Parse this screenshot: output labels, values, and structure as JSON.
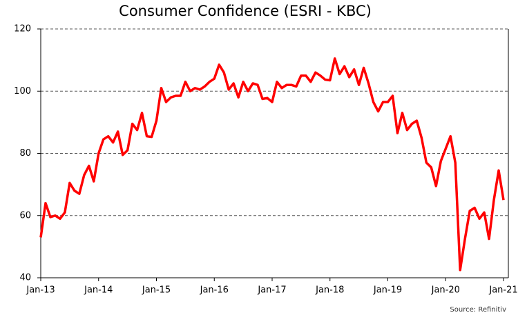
{
  "chart_data": {
    "type": "line",
    "title": "Consumer Confidence (ESRI - KBC)",
    "source": "Source: Refinitiv",
    "categories": [
      "Jan-13",
      null,
      null,
      null,
      null,
      null,
      null,
      null,
      null,
      null,
      null,
      null,
      "Jan-14",
      null,
      null,
      null,
      null,
      null,
      null,
      null,
      null,
      null,
      null,
      null,
      "Jan-15",
      null,
      null,
      null,
      null,
      null,
      null,
      null,
      null,
      null,
      null,
      null,
      "Jan-16",
      null,
      null,
      null,
      null,
      null,
      null,
      null,
      null,
      null,
      null,
      null,
      "Jan-17",
      null,
      null,
      null,
      null,
      null,
      null,
      null,
      null,
      null,
      null,
      null,
      "Jan-18",
      null,
      null,
      null,
      null,
      null,
      null,
      null,
      null,
      null,
      null,
      null,
      "Jan-19",
      null,
      null,
      null,
      null,
      null,
      null,
      null,
      null,
      null,
      null,
      null,
      "Jan-20",
      null,
      null,
      null,
      null,
      null,
      null,
      null,
      null,
      null,
      null,
      null,
      "Jan-21"
    ],
    "series": [
      {
        "name": "Consumer Confidence",
        "color": "#ff0000",
        "values": [
          53,
          64,
          59.5,
          60,
          59,
          61,
          70.5,
          68,
          67,
          73,
          76,
          71,
          80,
          84.5,
          85.5,
          83.5,
          87,
          79.5,
          81,
          89.5,
          87.5,
          93,
          85.5,
          85.3,
          90.5,
          101,
          96.5,
          98,
          98.5,
          98.5,
          103,
          100,
          101,
          100.5,
          101.5,
          103,
          104,
          108.5,
          106,
          100.5,
          102.5,
          98,
          103,
          100,
          102.5,
          102,
          97.5,
          97.8,
          96.5,
          103,
          101,
          102,
          102,
          101.5,
          105,
          105,
          103,
          106,
          105,
          103.7,
          103.5,
          110.5,
          105.5,
          108,
          104.5,
          107,
          102,
          107.5,
          102.5,
          96.5,
          93.5,
          96.5,
          96.5,
          98.5,
          86.5,
          93,
          87.5,
          89.5,
          90.5,
          85,
          77,
          75.5,
          69.5,
          77.5,
          81.5,
          85.5,
          77,
          42.5,
          52.5,
          61.5,
          62.5,
          59,
          61,
          52.5,
          65,
          74.5,
          65
        ]
      }
    ],
    "ylim": [
      40,
      120
    ],
    "yticks": [
      40,
      60,
      80,
      100,
      120
    ],
    "grid": true
  }
}
